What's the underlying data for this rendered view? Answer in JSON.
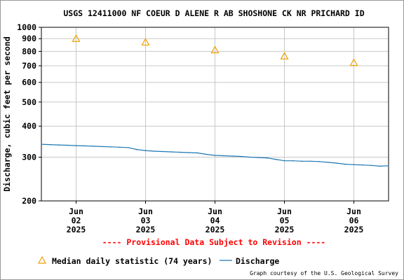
{
  "chart_data": {
    "type": "line",
    "title": "USGS 12411000 NF COEUR D ALENE R AB SHOSHONE CK NR PRICHARD ID",
    "ylabel": "Discharge, cubic feet per second",
    "xlabel": "",
    "y_scale": "log",
    "ylim": [
      200,
      1000
    ],
    "y_ticks": [
      "200",
      "300",
      "400",
      "500",
      "600",
      "700",
      "800",
      "900",
      "1000"
    ],
    "x_range": [
      "2025-06-01T12:00",
      "2025-06-06T12:00"
    ],
    "x_ticks": [
      {
        "date": "2025-06-02",
        "line1": "Jun",
        "line2": "02",
        "line3": "2025"
      },
      {
        "date": "2025-06-03",
        "line1": "Jun",
        "line2": "03",
        "line3": "2025"
      },
      {
        "date": "2025-06-04",
        "line1": "Jun",
        "line2": "04",
        "line3": "2025"
      },
      {
        "date": "2025-06-05",
        "line1": "Jun",
        "line2": "05",
        "line3": "2025"
      },
      {
        "date": "2025-06-06",
        "line1": "Jun",
        "line2": "06",
        "line3": "2025"
      }
    ],
    "grid": true,
    "series": [
      {
        "name": "Discharge",
        "kind": "line",
        "color": "#1f77b4",
        "points": [
          {
            "x": "2025-06-01T12:00",
            "y": 338
          },
          {
            "x": "2025-06-01T15:00",
            "y": 337
          },
          {
            "x": "2025-06-01T18:00",
            "y": 336
          },
          {
            "x": "2025-06-01T21:00",
            "y": 335
          },
          {
            "x": "2025-06-02T00:00",
            "y": 334
          },
          {
            "x": "2025-06-02T03:00",
            "y": 333
          },
          {
            "x": "2025-06-02T06:00",
            "y": 332
          },
          {
            "x": "2025-06-02T09:00",
            "y": 331
          },
          {
            "x": "2025-06-02T12:00",
            "y": 330
          },
          {
            "x": "2025-06-02T15:00",
            "y": 329
          },
          {
            "x": "2025-06-02T18:00",
            "y": 328
          },
          {
            "x": "2025-06-02T21:00",
            "y": 322
          },
          {
            "x": "2025-06-03T00:00",
            "y": 319
          },
          {
            "x": "2025-06-03T03:00",
            "y": 317
          },
          {
            "x": "2025-06-03T06:00",
            "y": 316
          },
          {
            "x": "2025-06-03T09:00",
            "y": 315
          },
          {
            "x": "2025-06-03T12:00",
            "y": 314
          },
          {
            "x": "2025-06-03T15:00",
            "y": 313
          },
          {
            "x": "2025-06-03T18:00",
            "y": 312
          },
          {
            "x": "2025-06-03T21:00",
            "y": 308
          },
          {
            "x": "2025-06-04T00:00",
            "y": 305
          },
          {
            "x": "2025-06-04T03:00",
            "y": 304
          },
          {
            "x": "2025-06-04T06:00",
            "y": 303
          },
          {
            "x": "2025-06-04T09:00",
            "y": 302
          },
          {
            "x": "2025-06-04T12:00",
            "y": 300
          },
          {
            "x": "2025-06-04T15:00",
            "y": 299
          },
          {
            "x": "2025-06-04T18:00",
            "y": 298
          },
          {
            "x": "2025-06-04T21:00",
            "y": 294
          },
          {
            "x": "2025-06-05T00:00",
            "y": 290
          },
          {
            "x": "2025-06-05T03:00",
            "y": 290
          },
          {
            "x": "2025-06-05T06:00",
            "y": 289
          },
          {
            "x": "2025-06-05T09:00",
            "y": 289
          },
          {
            "x": "2025-06-05T12:00",
            "y": 288
          },
          {
            "x": "2025-06-05T15:00",
            "y": 286
          },
          {
            "x": "2025-06-05T18:00",
            "y": 284
          },
          {
            "x": "2025-06-05T21:00",
            "y": 281
          },
          {
            "x": "2025-06-06T00:00",
            "y": 280
          },
          {
            "x": "2025-06-06T03:00",
            "y": 279
          },
          {
            "x": "2025-06-06T06:00",
            "y": 278
          },
          {
            "x": "2025-06-06T09:00",
            "y": 276
          },
          {
            "x": "2025-06-06T12:00",
            "y": 277
          }
        ]
      },
      {
        "name": "Median daily statistic (74 years)",
        "kind": "marker",
        "marker": "triangle",
        "color": "#f0a000",
        "points": [
          {
            "x": "2025-06-02",
            "y": 900
          },
          {
            "x": "2025-06-03",
            "y": 870
          },
          {
            "x": "2025-06-04",
            "y": 810
          },
          {
            "x": "2025-06-05",
            "y": 765
          },
          {
            "x": "2025-06-06",
            "y": 720
          }
        ]
      }
    ],
    "legend_placement": "bottom-left",
    "provisional_note": "---- Provisional Data Subject to Revision ----",
    "credit": "Graph courtesy of the U.S. Geological Survey"
  }
}
